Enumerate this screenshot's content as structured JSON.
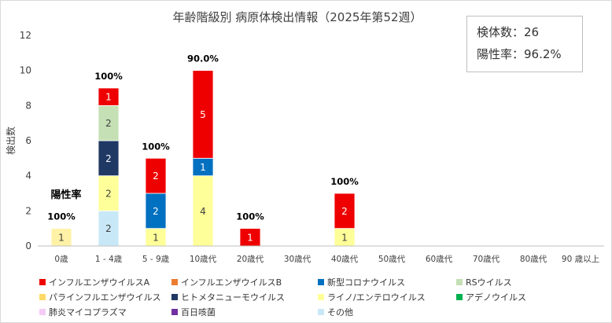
{
  "chart_data": {
    "type": "bar",
    "stacked": true,
    "title": "年齢階級別 病原体検出情報（2025年第52週）",
    "ylabel": "検出数",
    "xlabel": "",
    "ylim": [
      0,
      12
    ],
    "yticks": [
      0,
      2,
      4,
      6,
      8,
      10,
      12
    ],
    "grid": false,
    "categories": [
      "0歳",
      "1 - 4歳",
      "5 - 9歳",
      "10歳代",
      "20歳代",
      "30歳代",
      "40歳代",
      "50歳代",
      "60歳代",
      "70歳代",
      "80歳代",
      "90 歳以上"
    ],
    "series": [
      {
        "name": "パラインフルエンザウイルス",
        "color": "#FFF2A6",
        "values": [
          1,
          0,
          0,
          0,
          0,
          0,
          0,
          0,
          0,
          0,
          0,
          0
        ]
      },
      {
        "name": "その他",
        "color": "#C9E8F7",
        "values": [
          0,
          2,
          0,
          0,
          0,
          0,
          0,
          0,
          0,
          0,
          0,
          0
        ]
      },
      {
        "name": "ライノ/エンテロウイルス",
        "color": "#FFFF99",
        "values": [
          0,
          2,
          1,
          4,
          0,
          0,
          1,
          0,
          0,
          0,
          0,
          0
        ]
      },
      {
        "name": "ヒトメタニューモウイルス",
        "color": "#203864",
        "values": [
          0,
          2,
          0,
          0,
          0,
          0,
          0,
          0,
          0,
          0,
          0,
          0
        ]
      },
      {
        "name": "RSウイルス",
        "color": "#C5E0B4",
        "values": [
          0,
          2,
          0,
          0,
          0,
          0,
          0,
          0,
          0,
          0,
          0,
          0
        ]
      },
      {
        "name": "新型コロナウイルス",
        "color": "#0070C0",
        "values": [
          0,
          0,
          2,
          1,
          0,
          0,
          0,
          0,
          0,
          0,
          0,
          0
        ]
      },
      {
        "name": "インフルエンザウイルスA",
        "color": "#EE0000",
        "values": [
          0,
          1,
          2,
          5,
          1,
          0,
          2,
          0,
          0,
          0,
          0,
          0
        ]
      }
    ],
    "positivity_labels": [
      "100%",
      "100%",
      "100%",
      "90.0%",
      "100%",
      "",
      "100%",
      "",
      "",
      "",
      "",
      ""
    ],
    "positivity_header": "陽性率",
    "legend": [
      {
        "name": "インフルエンザウイルスA",
        "color": "#EE0000"
      },
      {
        "name": "インフルエンザウイルスB",
        "color": "#ED7D31"
      },
      {
        "name": "新型コロナウイルス",
        "color": "#0070C0"
      },
      {
        "name": "RSウイルス",
        "color": "#C5E0B4"
      },
      {
        "name": "パラインフルエンザウイルス",
        "color": "#FFD966"
      },
      {
        "name": "ヒトメタニューモウイルス",
        "color": "#203864"
      },
      {
        "name": "ライノ/エンテロウイルス",
        "color": "#FFFF99"
      },
      {
        "name": "アデノウイルス",
        "color": "#00B050"
      },
      {
        "name": "肺炎マイコプラズマ",
        "color": "#F4CCF4"
      },
      {
        "name": "百日咳菌",
        "color": "#7030A0"
      },
      {
        "name": "その他",
        "color": "#C9E8F7"
      }
    ]
  },
  "info_box": {
    "specimens_label": "検体数：",
    "specimens_value": "26",
    "positivity_label": "陽性率：",
    "positivity_value": "96.2%"
  }
}
